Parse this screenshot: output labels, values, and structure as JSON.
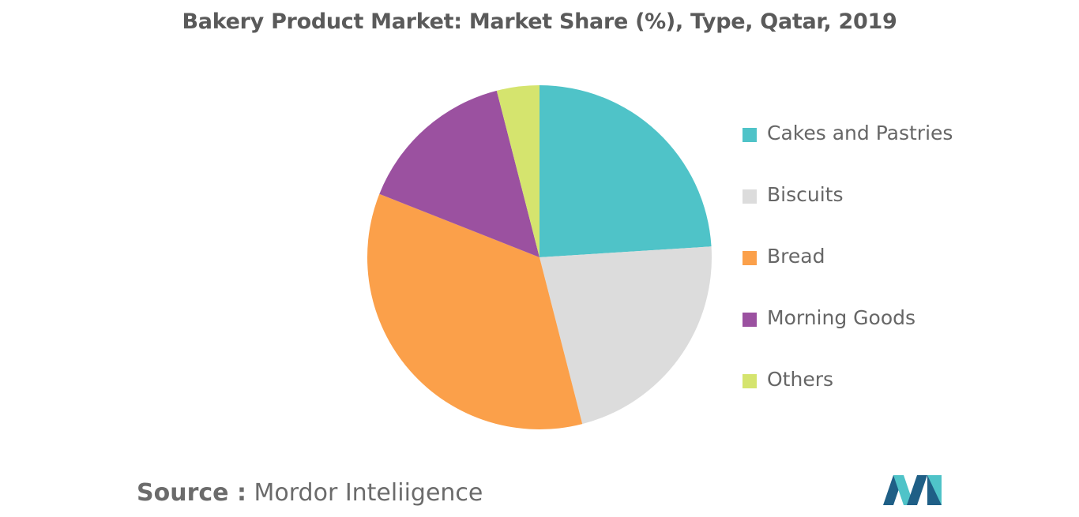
{
  "chart_data": {
    "type": "pie",
    "title": "Bakery Product Market: Market Share (%), Type, Qatar, 2019",
    "categories": [
      "Cakes and Pastries",
      "Biscuits",
      "Bread",
      "Morning Goods",
      "Others"
    ],
    "values": [
      24,
      22,
      35,
      15,
      4
    ],
    "colors": [
      "#4fc3c8",
      "#dcdcdc",
      "#fba04a",
      "#9b51a0",
      "#d5e46e"
    ],
    "start_angle_deg": 0,
    "direction": "clockwise",
    "legend_position": "right"
  },
  "source": {
    "prefix": "Source :",
    "text": "Mordor Inteliigence"
  },
  "logo": {
    "icon": "mordor-intelligence-logo",
    "colors": [
      "#1f5f86",
      "#4fc3c8"
    ]
  }
}
